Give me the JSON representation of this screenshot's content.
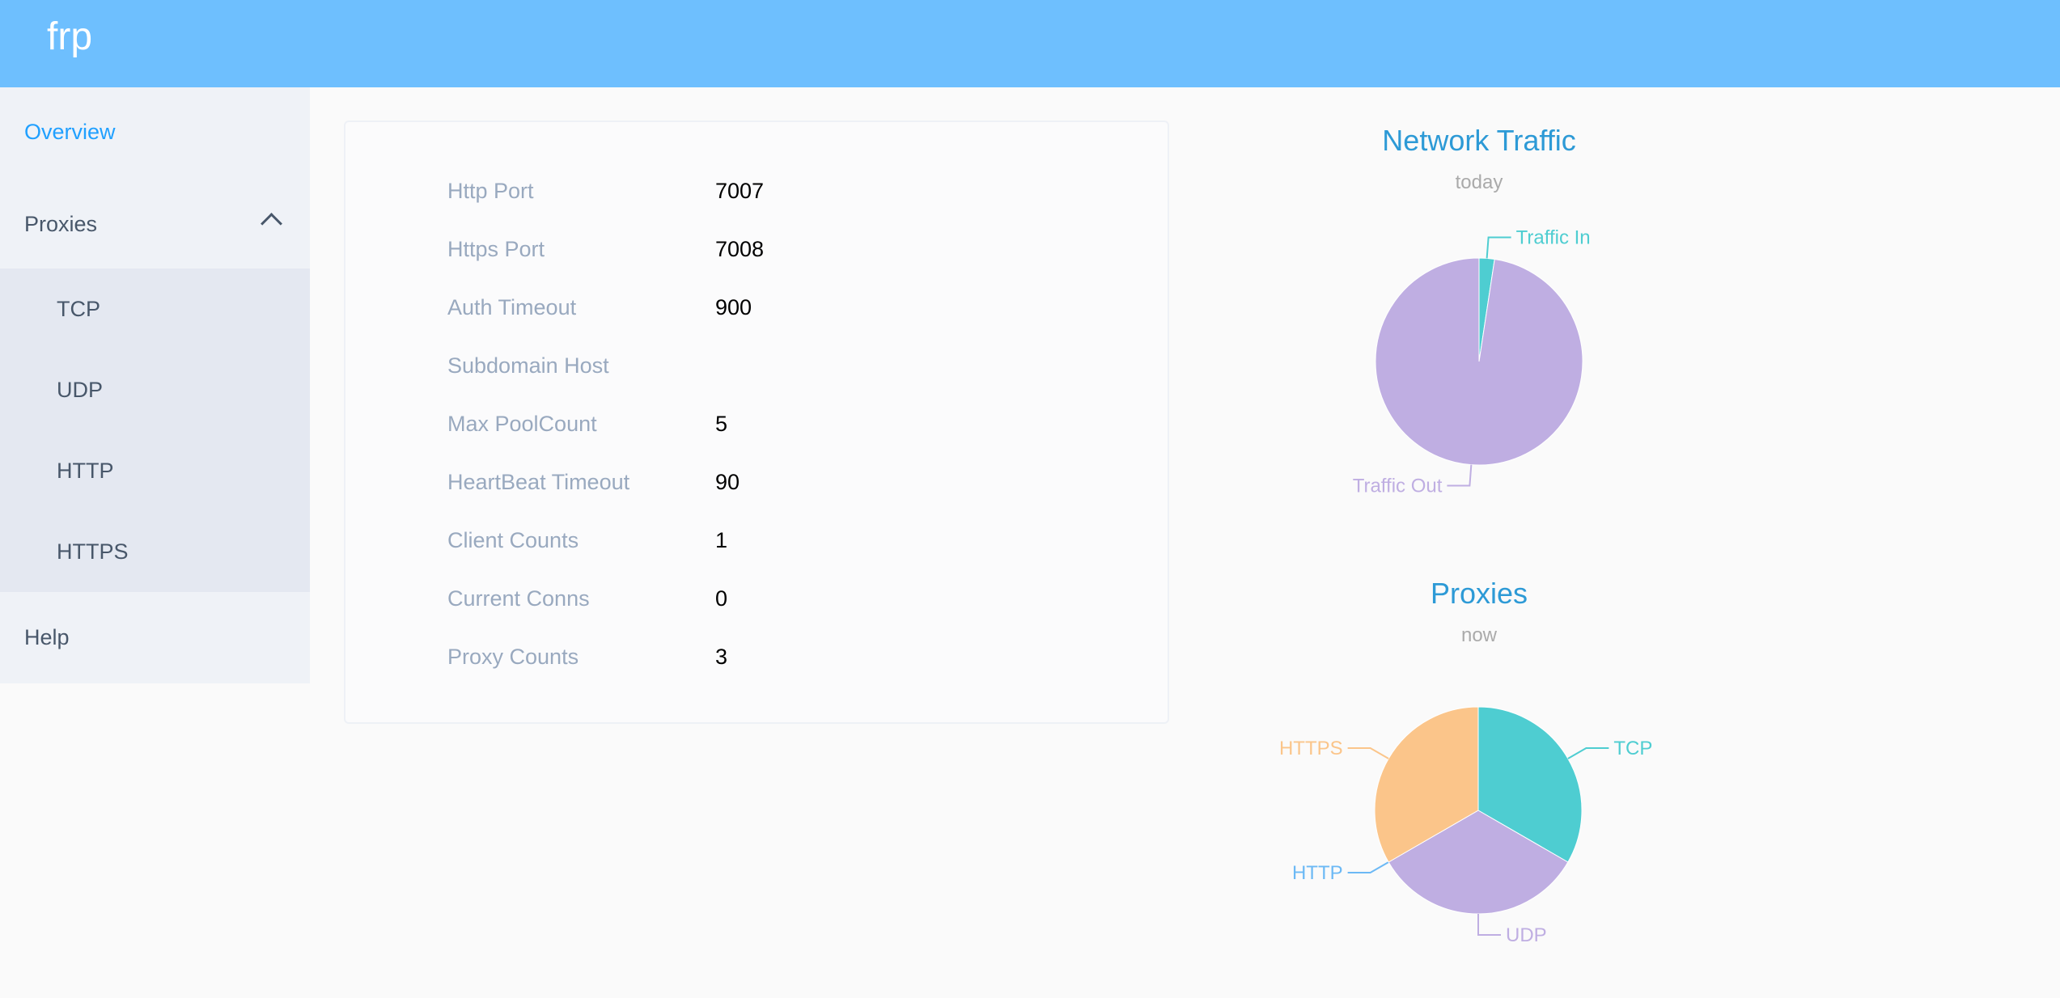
{
  "header": {
    "brand": "frp"
  },
  "sidebar": {
    "overview": "Overview",
    "proxies": "Proxies",
    "sub": [
      "TCP",
      "UDP",
      "HTTP",
      "HTTPS"
    ],
    "help": "Help",
    "active_color": "#20a0ff"
  },
  "server_info": [
    {
      "label": "Http Port",
      "value": "7007"
    },
    {
      "label": "Https Port",
      "value": "7008"
    },
    {
      "label": "Auth Timeout",
      "value": "900"
    },
    {
      "label": "Subdomain Host",
      "value": ""
    },
    {
      "label": "Max PoolCount",
      "value": "5"
    },
    {
      "label": "HeartBeat Timeout",
      "value": "90"
    },
    {
      "label": "Client Counts",
      "value": "1"
    },
    {
      "label": "Current Conns",
      "value": "0"
    },
    {
      "label": "Proxy Counts",
      "value": "3"
    }
  ],
  "chart_data": [
    {
      "type": "pie",
      "title": "Network Traffic",
      "subtitle": "today",
      "series": [
        {
          "name": "Traffic In",
          "value": 2.4,
          "color": "#4ecdd1"
        },
        {
          "name": "Traffic Out",
          "value": 97.6,
          "color": "#bfaee2"
        }
      ],
      "unit": "percent"
    },
    {
      "type": "pie",
      "title": "Proxies",
      "subtitle": "now",
      "series": [
        {
          "name": "TCP",
          "value": 1,
          "color": "#4ecdd1"
        },
        {
          "name": "UDP",
          "value": 1,
          "color": "#bfaee2"
        },
        {
          "name": "HTTP",
          "value": 0,
          "color": "#6cb9f5"
        },
        {
          "name": "HTTPS",
          "value": 1,
          "color": "#fbc58a"
        }
      ]
    }
  ]
}
